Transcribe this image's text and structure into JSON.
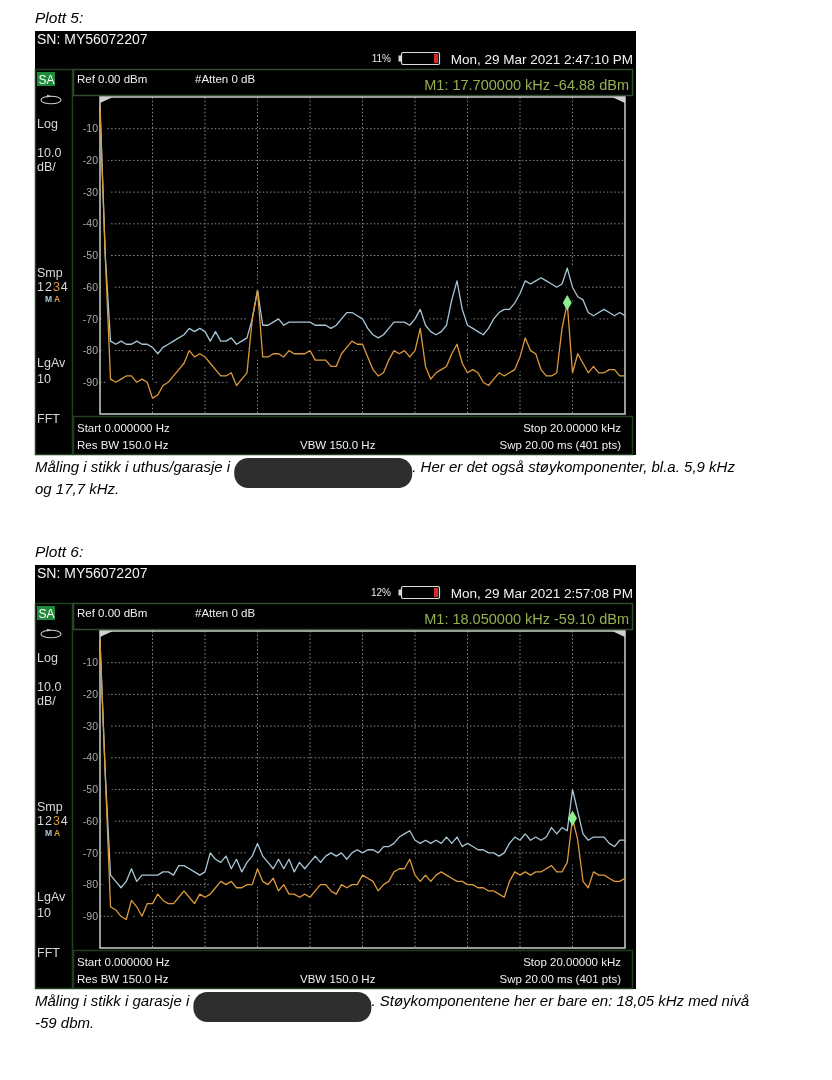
{
  "chart_data": [
    {
      "type": "line",
      "title": "Plott 5:",
      "subtitle": "SN: MY56072207",
      "categories": [
        null,
        null,
        null,
        null,
        null,
        null,
        null,
        null,
        null,
        null,
        null,
        null,
        null,
        null,
        null,
        null,
        null,
        null,
        null,
        null,
        null,
        null,
        null,
        null,
        null,
        null,
        null,
        null,
        null,
        null,
        null,
        null,
        null,
        null,
        null,
        null,
        null,
        null,
        null,
        null,
        null,
        null,
        null,
        null,
        null,
        null,
        null,
        null,
        null,
        null,
        null,
        null,
        null,
        null,
        null,
        null,
        null,
        null,
        null,
        null,
        null,
        null,
        null,
        null,
        null,
        null,
        null,
        null,
        null,
        null,
        null,
        null,
        null,
        null,
        null,
        null,
        null,
        null,
        null,
        null,
        null,
        null,
        null,
        null,
        null,
        null,
        null,
        null,
        null,
        null,
        null,
        null,
        null,
        null,
        null,
        null,
        null,
        null,
        null,
        null,
        null
      ],
      "ylim": [
        -100,
        0
      ],
      "yticks": [
        -90,
        -80,
        -70,
        -60,
        -50,
        -40,
        -30,
        -20,
        -10
      ],
      "tick_labels": "y",
      "grid": true,
      "series": [
        {
          "color": "#a9c6d6",
          "values": [
            -3,
            -50,
            -77,
            -78,
            -77,
            -78,
            -78,
            -77,
            -78,
            -78,
            -79,
            -81,
            -79,
            -78,
            -77,
            -76,
            -75,
            -73,
            -74,
            -73,
            -74,
            -77,
            -74,
            -77,
            -77,
            -76,
            -78,
            -77,
            -76,
            -70,
            -61,
            -72,
            -72,
            -71,
            -70,
            -72,
            -71,
            -71,
            -71,
            -71,
            -71,
            -72,
            -72,
            -72,
            -73,
            -72,
            -70,
            -68,
            -68,
            -69,
            -70,
            -73,
            -75,
            -76,
            -75,
            -73,
            -71,
            -71,
            -71,
            -72,
            -70,
            -67,
            -72,
            -74,
            -75,
            -74,
            -72,
            -64,
            -58,
            -67,
            -72,
            -73,
            -74,
            -75,
            -73,
            -70,
            -68,
            -67,
            -67,
            -65,
            -62,
            -58,
            -59,
            -58,
            -57,
            -58,
            -59,
            -60,
            -59,
            -54,
            -60,
            -63,
            -64,
            -68,
            -69,
            -68,
            -67,
            -68,
            -69,
            -68,
            -69
          ]
        },
        {
          "color": "#dc9a3c",
          "values": [
            -3,
            -50,
            -89,
            -90,
            -89,
            -88,
            -88,
            -90,
            -89,
            -90,
            -95,
            -94,
            -91,
            -90,
            -88,
            -86,
            -84,
            -80,
            -82,
            -81,
            -82,
            -84,
            -86,
            -88,
            -88,
            -87,
            -91,
            -89,
            -87,
            -70,
            -61,
            -82,
            -82,
            -81,
            -81,
            -82,
            -80,
            -81,
            -81,
            -81,
            -80,
            -83,
            -83,
            -83,
            -85,
            -85,
            -81,
            -79,
            -77,
            -78,
            -78,
            -82,
            -86,
            -88,
            -87,
            -83,
            -80,
            -81,
            -80,
            -82,
            -80,
            -73,
            -85,
            -89,
            -87,
            -86,
            -85,
            -81,
            -78,
            -84,
            -87,
            -86,
            -87,
            -90,
            -91,
            -89,
            -87,
            -88,
            -87,
            -86,
            -82,
            -76,
            -80,
            -81,
            -86,
            -88,
            -88,
            -87,
            -73,
            -65,
            -87,
            -81,
            -84,
            -87,
            -85,
            -87,
            -87,
            -86,
            -86,
            -88,
            -88
          ]
        },
        {
          "type": "scatter",
          "color": "#8cf08c",
          "marker": "diamond",
          "values": [
            null,
            null,
            null,
            null,
            null,
            null,
            null,
            null,
            null,
            null,
            null,
            null,
            null,
            null,
            null,
            null,
            null,
            null,
            null,
            null,
            null,
            null,
            null,
            null,
            null,
            null,
            null,
            null,
            null,
            null,
            null,
            null,
            null,
            null,
            null,
            null,
            null,
            null,
            null,
            null,
            null,
            null,
            null,
            null,
            null,
            null,
            null,
            null,
            null,
            null,
            null,
            null,
            null,
            null,
            null,
            null,
            null,
            null,
            null,
            null,
            null,
            null,
            null,
            null,
            null,
            null,
            null,
            null,
            null,
            null,
            null,
            null,
            null,
            null,
            null,
            null,
            null,
            null,
            null,
            null,
            null,
            null,
            null,
            null,
            null,
            null,
            null,
            null,
            null,
            -64.88,
            null,
            null,
            null,
            null,
            null,
            null,
            null,
            null,
            null,
            null,
            null
          ]
        }
      ],
      "annotations": [
        "11%",
        "Mon, 29 Mar 2021 2:47:10 PM",
        "SA",
        "Log",
        "10.0",
        "dB/",
        "Smp",
        "1234",
        "MA",
        "LgAv",
        "10",
        "FFT",
        "Ref 0.00 dBm",
        "#Atten 0 dB",
        "M1: 17.700000 kHz -64.88 dBm",
        "Start 0.000000 Hz",
        "Stop 20.00000 kHz",
        "Res BW 150.0 Hz",
        "VBW 150.0 Hz",
        "Swp 20.00 ms (401 pts)",
        "Måling i stikk i uthus/garasje i",
        ". Her er det også støykomponenter, bl.a. 5,9 kHz og 17,7 kHz."
      ]
    },
    {
      "type": "line",
      "title": "Plott 6:",
      "subtitle": "SN: MY56072207",
      "categories": [
        null,
        null,
        null,
        null,
        null,
        null,
        null,
        null,
        null,
        null,
        null,
        null,
        null,
        null,
        null,
        null,
        null,
        null,
        null,
        null,
        null,
        null,
        null,
        null,
        null,
        null,
        null,
        null,
        null,
        null,
        null,
        null,
        null,
        null,
        null,
        null,
        null,
        null,
        null,
        null,
        null,
        null,
        null,
        null,
        null,
        null,
        null,
        null,
        null,
        null,
        null,
        null,
        null,
        null,
        null,
        null,
        null,
        null,
        null,
        null,
        null,
        null,
        null,
        null,
        null,
        null,
        null,
        null,
        null,
        null,
        null,
        null,
        null,
        null,
        null,
        null,
        null,
        null,
        null,
        null,
        null,
        null,
        null,
        null,
        null,
        null,
        null,
        null,
        null,
        null,
        null,
        null,
        null,
        null,
        null,
        null,
        null,
        null,
        null,
        null,
        null
      ],
      "ylim": [
        -100,
        0
      ],
      "yticks": [
        -90,
        -80,
        -70,
        -60,
        -50,
        -40,
        -30,
        -20,
        -10
      ],
      "tick_labels": "y",
      "grid": true,
      "series": [
        {
          "color": "#a9c6d6",
          "values": [
            -3,
            -45,
            -77,
            -79,
            -81,
            -79,
            -75,
            -79,
            -77,
            -77,
            -77,
            -77,
            -76,
            -76,
            -77,
            -74,
            -74,
            -75,
            -76,
            -77,
            -76,
            -70,
            -72,
            -73,
            -71,
            -75,
            -72,
            -76,
            -73,
            -71,
            -67,
            -71,
            -73,
            -75,
            -72,
            -75,
            -72,
            -76,
            -73,
            -75,
            -73,
            -71,
            -73,
            -71,
            -70,
            -71,
            -70,
            -72,
            -70,
            -69,
            -70,
            -69,
            -69,
            -70,
            -68,
            -68,
            -67,
            -65,
            -64,
            -63,
            -66,
            -67,
            -66,
            -67,
            -66,
            -67,
            -65,
            -67,
            -65,
            -68,
            -67,
            -68,
            -69,
            -69,
            -70,
            -70,
            -71,
            -70,
            -67,
            -65,
            -66,
            -64,
            -66,
            -65,
            -66,
            -65,
            -62,
            -64,
            -62,
            -63,
            -50,
            -57,
            -64,
            -66,
            -65,
            -65,
            -65,
            -67,
            -68,
            -66,
            -66
          ]
        },
        {
          "color": "#dc9a3c",
          "values": [
            -3,
            -45,
            -87,
            -88,
            -90,
            -91,
            -85,
            -87,
            -90,
            -86,
            -86,
            -83,
            -85,
            -86,
            -86,
            -84,
            -82,
            -84,
            -86,
            -83,
            -84,
            -83,
            -81,
            -79,
            -80,
            -79,
            -81,
            -81,
            -80,
            -80,
            -75,
            -79,
            -80,
            -78,
            -82,
            -80,
            -83,
            -83,
            -84,
            -83,
            -84,
            -82,
            -80,
            -80,
            -82,
            -83,
            -80,
            -81,
            -80,
            -80,
            -77,
            -78,
            -79,
            -82,
            -80,
            -79,
            -76,
            -75,
            -75,
            -72,
            -77,
            -79,
            -77,
            -79,
            -77,
            -76,
            -77,
            -78,
            -79,
            -79,
            -80,
            -80,
            -81,
            -81,
            -82,
            -82,
            -83,
            -84,
            -79,
            -76,
            -77,
            -76,
            -77,
            -76,
            -76,
            -75,
            -74,
            -76,
            -76,
            -73,
            -59,
            -66,
            -79,
            -81,
            -76,
            -77,
            -77,
            -78,
            -79,
            -79,
            -78
          ]
        },
        {
          "type": "scatter",
          "color": "#8cf08c",
          "marker": "diamond",
          "values": [
            null,
            null,
            null,
            null,
            null,
            null,
            null,
            null,
            null,
            null,
            null,
            null,
            null,
            null,
            null,
            null,
            null,
            null,
            null,
            null,
            null,
            null,
            null,
            null,
            null,
            null,
            null,
            null,
            null,
            null,
            null,
            null,
            null,
            null,
            null,
            null,
            null,
            null,
            null,
            null,
            null,
            null,
            null,
            null,
            null,
            null,
            null,
            null,
            null,
            null,
            null,
            null,
            null,
            null,
            null,
            null,
            null,
            null,
            null,
            null,
            null,
            null,
            null,
            null,
            null,
            null,
            null,
            null,
            null,
            null,
            null,
            null,
            null,
            null,
            null,
            null,
            null,
            null,
            null,
            null,
            null,
            null,
            null,
            null,
            null,
            null,
            null,
            null,
            null,
            null,
            -59.1,
            null,
            null,
            null,
            null,
            null,
            null,
            null,
            null,
            null,
            null
          ]
        }
      ],
      "annotations": [
        "12%",
        "Mon, 29 Mar 2021 2:57:08 PM",
        "SA",
        "Log",
        "10.0",
        "dB/",
        "Smp",
        "1234",
        "MA",
        "LgAv",
        "10",
        "FFT",
        "Ref 0.00 dBm",
        "#Atten 0 dB",
        "M1: 18.050000 kHz -59.10 dBm",
        "Start 0.000000 Hz",
        "Stop 20.00000 kHz",
        "Res BW 150.0 Hz",
        "VBW 150.0 Hz",
        "Swp 20.00 ms (401 pts)",
        "Måling i stikk i garasje i",
        ". Støykomponentene her er bare en: 18,05 kHz med nivå -59 dbm."
      ]
    }
  ]
}
